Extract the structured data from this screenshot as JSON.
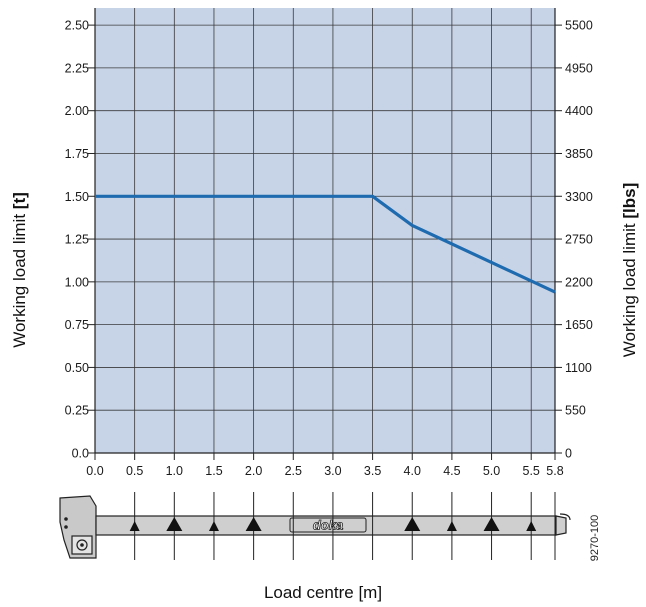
{
  "chart_data": {
    "type": "line",
    "x_label": "Load centre [m]",
    "y_label_prefix": "Working load limit ",
    "y_label_unit": "[t]",
    "y2_label_prefix": "Working load limit ",
    "y2_label_unit": "[lbs]",
    "xlim": [
      0,
      5.8
    ],
    "ylim": [
      0,
      2.6
    ],
    "x_ticks": [
      0.0,
      0.5,
      1.0,
      1.5,
      2.0,
      2.5,
      3.0,
      3.5,
      4.0,
      4.5,
      5.0,
      5.5,
      5.8
    ],
    "x_tick_labels": [
      "0.0",
      "0.5",
      "1.0",
      "1.5",
      "2.0",
      "2.5",
      "3.0",
      "3.5",
      "4.0",
      "4.5",
      "5.0",
      "5.5",
      "5.8"
    ],
    "y_ticks": [
      0,
      0.25,
      0.5,
      0.75,
      1.0,
      1.25,
      1.5,
      1.75,
      2.0,
      2.25,
      2.5
    ],
    "y_tick_labels": [
      "0.0",
      "0.25",
      "0.50",
      "0.75",
      "1.00",
      "1.25",
      "1.50",
      "1.75",
      "2.00",
      "2.25",
      "2.50"
    ],
    "y2_tick_labels": [
      "0",
      "550",
      "1100",
      "1650",
      "2200",
      "2750",
      "3300",
      "3850",
      "4400",
      "4950",
      "5500"
    ],
    "grid": true,
    "series": [
      {
        "x": [
          0,
          3.5,
          4.0,
          5.8
        ],
        "y": [
          1.5,
          1.5,
          1.33,
          0.94
        ]
      }
    ],
    "colors": {
      "plot_bg": "#c7d4e8",
      "grid": "#3a3a3a",
      "line": "#1f6bb0"
    }
  },
  "illustration": {
    "brand": "doka",
    "code": "9270-100",
    "marker_x": [
      0.5,
      1.0,
      1.5,
      2.0,
      4.0,
      4.5,
      5.0,
      5.5
    ],
    "marker_large": [
      false,
      true,
      false,
      true,
      true,
      false,
      true,
      false
    ]
  }
}
